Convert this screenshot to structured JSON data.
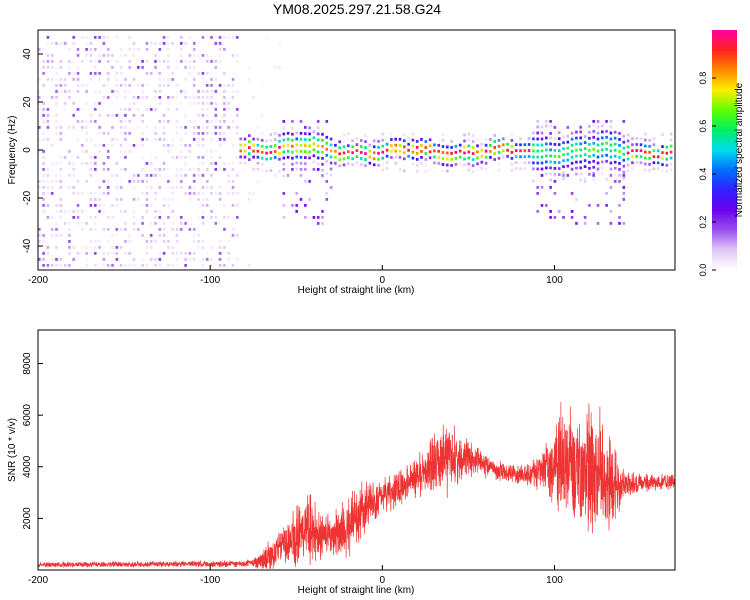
{
  "title": "YM08.2025.297.21.58.G24",
  "chart_data": [
    {
      "type": "heatmap",
      "name": "spectrogram",
      "xlabel": "Height of straight line (km)",
      "ylabel": "Frequency (Hz)",
      "xlim": [
        -200,
        170
      ],
      "ylim": [
        -50,
        50
      ],
      "xticks": [
        -200,
        -100,
        0,
        100
      ],
      "yticks": [
        -40,
        -20,
        0,
        20,
        40
      ],
      "noise_region_end_km": -83,
      "signal_band_center_hz": 0,
      "signal_band_halfwidth_hz": 4,
      "colorbar": {
        "label": "Normalized spectral amplitude",
        "range": [
          0,
          1
        ],
        "ticks": [
          0.0,
          0.2,
          0.4,
          0.6,
          0.8
        ],
        "stops": [
          "#ffffff",
          "#e0c8f8",
          "#9a50ee",
          "#6a00ee",
          "#3020ff",
          "#0070ff",
          "#00ddee",
          "#00ee60",
          "#60ff00",
          "#ffee00",
          "#ff8800",
          "#ff2020",
          "#ff00a0"
        ]
      }
    },
    {
      "type": "line",
      "name": "snr",
      "xlabel": "Height of straight line (km)",
      "ylabel": "SNR (10 * v/v)",
      "xlim": [
        -200,
        170
      ],
      "ylim": [
        0,
        9300
      ],
      "xticks": [
        -200,
        -100,
        0,
        100
      ],
      "yticks": [
        2000,
        4000,
        6000,
        8000
      ],
      "color": "#ee3333",
      "envelope": {
        "x": [
          -200,
          -160,
          -120,
          -80,
          -72,
          -65,
          -58,
          -50,
          -42,
          -35,
          -28,
          -20,
          -12,
          -5,
          5,
          15,
          25,
          32,
          38,
          45,
          55,
          65,
          75,
          85,
          95,
          100,
          105,
          110,
          115,
          120,
          125,
          130,
          135,
          140,
          150,
          160,
          170
        ],
        "center": [
          200,
          220,
          230,
          250,
          300,
          550,
          950,
          1300,
          1500,
          1350,
          1300,
          1700,
          2300,
          2700,
          3000,
          3400,
          3900,
          4200,
          4300,
          4400,
          4200,
          3900,
          3700,
          3700,
          3800,
          4000,
          4100,
          4000,
          3900,
          3900,
          3700,
          3500,
          3300,
          3300,
          3400,
          3400,
          3400
        ],
        "spread": [
          120,
          130,
          140,
          150,
          300,
          800,
          900,
          1300,
          1700,
          1100,
          1000,
          1400,
          1300,
          900,
          900,
          800,
          1000,
          1500,
          1800,
          1200,
          700,
          500,
          400,
          500,
          1200,
          1800,
          2800,
          2600,
          2600,
          3200,
          3000,
          2600,
          1600,
          700,
          450,
          350,
          350
        ]
      }
    }
  ]
}
